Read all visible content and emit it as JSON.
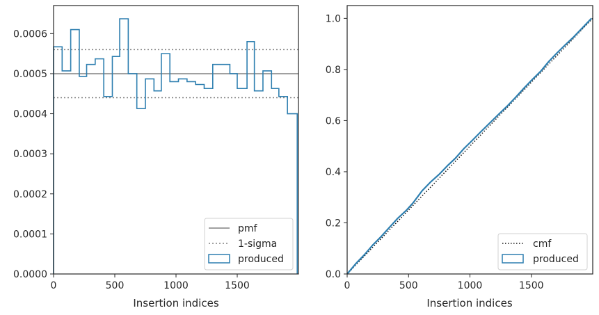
{
  "chart_data": [
    {
      "type": "line",
      "xlabel": "Insertion indices",
      "ylabel": "",
      "xlim": [
        0,
        2000
      ],
      "ylim": [
        0,
        0.00067
      ],
      "x_ticks": [
        0,
        500,
        1000,
        1500
      ],
      "x_tick_labels": [
        "0",
        "500",
        "1000",
        "1500"
      ],
      "y_ticks": [
        0,
        0.0001,
        0.0002,
        0.0003,
        0.0004,
        0.0005,
        0.0006
      ],
      "y_tick_labels": [
        "0.0000",
        "0.0001",
        "0.0002",
        "0.0003",
        "0.0004",
        "0.0005",
        "0.0006"
      ],
      "grid": false,
      "legend_position": "lower-right",
      "colors": {
        "pmf": "#808080",
        "sigma": "#808080",
        "produced": "#2e7fb0"
      },
      "series": [
        {
          "name": "pmf",
          "style": "solid",
          "value": 0.0005
        },
        {
          "name": "1-sigma",
          "style": "dotted",
          "values": [
            0.00056,
            0.00044
          ]
        },
        {
          "name": "produced",
          "style": "step-histogram",
          "bin_edges": [
            0,
            70,
            140,
            210,
            270,
            340,
            410,
            480,
            540,
            610,
            680,
            750,
            820,
            880,
            950,
            1020,
            1090,
            1160,
            1230,
            1300,
            1370,
            1440,
            1500,
            1580,
            1640,
            1710,
            1780,
            1840,
            1910,
            1990
          ],
          "values": [
            0.000567,
            0.000507,
            0.00061,
            0.000493,
            0.000523,
            0.000537,
            0.000443,
            0.000543,
            0.000637,
            0.0005,
            0.000413,
            0.000487,
            0.000457,
            0.00055,
            0.00048,
            0.000487,
            0.00048,
            0.000473,
            0.000463,
            0.000523,
            0.000523,
            0.0005,
            0.000463,
            0.00058,
            0.000457,
            0.000507,
            0.000463,
            0.000443,
            0.0004
          ]
        }
      ]
    },
    {
      "type": "line",
      "xlabel": "Insertion indices",
      "ylabel": "",
      "xlim": [
        0,
        2000
      ],
      "ylim": [
        0,
        1.05
      ],
      "x_ticks": [
        0,
        500,
        1000,
        1500
      ],
      "x_tick_labels": [
        "0",
        "500",
        "1000",
        "1500"
      ],
      "y_ticks": [
        0,
        0.2,
        0.4,
        0.6,
        0.8,
        1.0
      ],
      "y_tick_labels": [
        "0.0",
        "0.2",
        "0.4",
        "0.6",
        "0.8",
        "1.0"
      ],
      "grid": false,
      "legend_position": "lower-right",
      "colors": {
        "cmf": "#111111",
        "produced": "#2e7fb0"
      },
      "series": [
        {
          "name": "cmf",
          "style": "dotted",
          "x": [
            0,
            2000
          ],
          "y": [
            0,
            1.0
          ]
        },
        {
          "name": "produced",
          "style": "solid",
          "x": [
            0,
            70,
            140,
            210,
            270,
            340,
            410,
            480,
            540,
            610,
            680,
            750,
            820,
            880,
            950,
            1020,
            1090,
            1160,
            1230,
            1300,
            1370,
            1440,
            1500,
            1580,
            1640,
            1710,
            1780,
            1840,
            1910,
            1990
          ],
          "y": [
            0,
            0.04,
            0.075,
            0.114,
            0.143,
            0.18,
            0.217,
            0.248,
            0.28,
            0.325,
            0.36,
            0.39,
            0.425,
            0.452,
            0.49,
            0.523,
            0.557,
            0.59,
            0.623,
            0.655,
            0.69,
            0.727,
            0.757,
            0.795,
            0.83,
            0.865,
            0.898,
            0.925,
            0.96,
            1.0
          ]
        }
      ]
    }
  ]
}
